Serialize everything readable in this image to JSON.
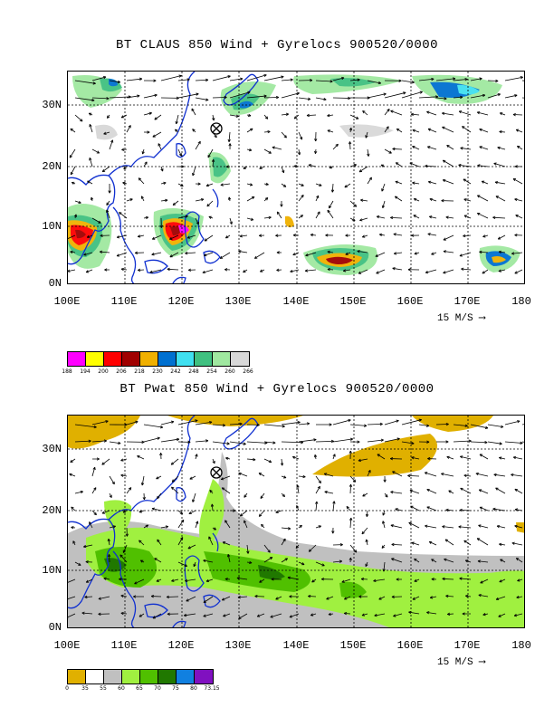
{
  "panel1": {
    "title": "BT CLAUS 850 Wind + Gyrelocs 900520/0000",
    "y_ticks": [
      "30N",
      "20N",
      "10N",
      "0N"
    ],
    "x_ticks": [
      "100E",
      "110E",
      "120E",
      "130E",
      "140E",
      "150E",
      "160E",
      "170E",
      "180"
    ],
    "vector_scale": "15 M/S",
    "legend": {
      "colors": [
        "#ff00ff",
        "#ffff00",
        "#ff0000",
        "#a00000",
        "#f0b000",
        "#0070d0",
        "#40e0f0",
        "#40c080",
        "#a0e8a0",
        "#d8d8d8"
      ],
      "labels": [
        "188",
        "194",
        "200",
        "206",
        "218",
        "230",
        "242",
        "248",
        "254",
        "260",
        "266"
      ]
    }
  },
  "panel2": {
    "title": "BT Pwat 850 Wind + Gyrelocs 900520/0000",
    "y_ticks": [
      "30N",
      "20N",
      "10N",
      "0N"
    ],
    "x_ticks": [
      "100E",
      "110E",
      "120E",
      "130E",
      "140E",
      "150E",
      "160E",
      "170E",
      "180"
    ],
    "vector_scale": "15 M/S",
    "legend": {
      "colors": [
        "#e0b000",
        "#ffffff",
        "#c0c0c0",
        "#a0f040",
        "#50c000",
        "#207800",
        "#1080e0",
        "#8010c0"
      ],
      "labels": [
        "0",
        "35",
        "55",
        "60",
        "65",
        "70",
        "75",
        "80",
        "73.15"
      ]
    }
  }
}
